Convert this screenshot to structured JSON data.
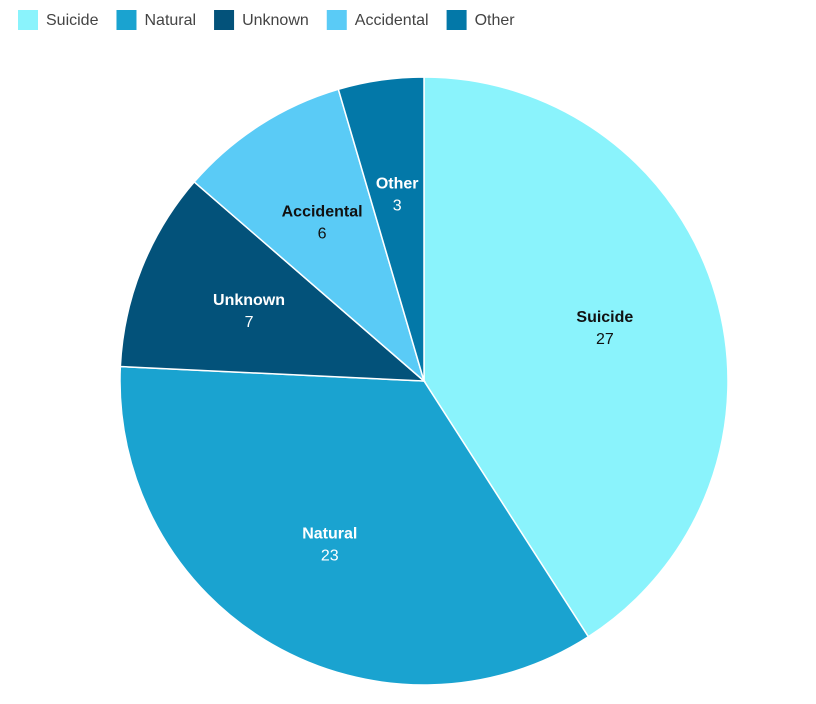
{
  "chart_data": {
    "type": "pie",
    "categories": [
      "Suicide",
      "Natural",
      "Unknown",
      "Accidental",
      "Other"
    ],
    "values": [
      27,
      23,
      7,
      6,
      3
    ],
    "colors": [
      "#8af3fc",
      "#1aa3d0",
      "#03527a",
      "#5acbf6",
      "#0378a8"
    ],
    "legend": "top-left"
  }
}
